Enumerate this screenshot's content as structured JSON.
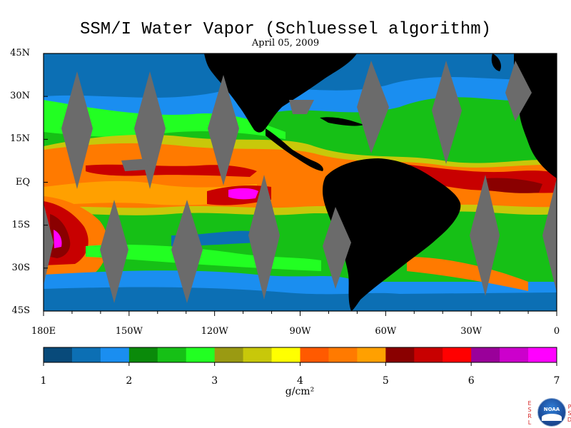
{
  "header": {
    "title": "SSM/I Water Vapor (Schluessel algorithm)",
    "date": "April 05, 2009"
  },
  "axes": {
    "lat_labels": [
      "45N",
      "30N",
      "15N",
      "EQ",
      "15S",
      "30S",
      "45S"
    ],
    "lat_values": [
      45,
      30,
      15,
      0,
      -15,
      -30,
      -45
    ],
    "lon_labels": [
      "180E",
      "150W",
      "120W",
      "90W",
      "60W",
      "30W",
      "0"
    ],
    "lon_values": [
      -180,
      -150,
      -120,
      -90,
      -60,
      -30,
      0
    ],
    "lat_range": [
      -45,
      45
    ],
    "lon_range": [
      -180,
      0
    ]
  },
  "colorbar": {
    "tick_labels": [
      "1",
      "2",
      "3",
      "4",
      "5",
      "6",
      "7"
    ],
    "range": [
      1,
      7
    ],
    "units": "g/cm²",
    "colors": [
      "#084a7a",
      "#0c6fb4",
      "#1a8ef0",
      "#0a8a0a",
      "#16c016",
      "#22ff22",
      "#9a9a12",
      "#c8c80a",
      "#ffff00",
      "#ff5a00",
      "#ff7a00",
      "#ffa000",
      "#8a0000",
      "#c80000",
      "#ff0000",
      "#9a009a",
      "#cc00cc",
      "#ff00ff"
    ]
  },
  "logo": {
    "left_letters": "ESRL",
    "right_letters": "PSD",
    "circle_text": "NOAA"
  }
}
